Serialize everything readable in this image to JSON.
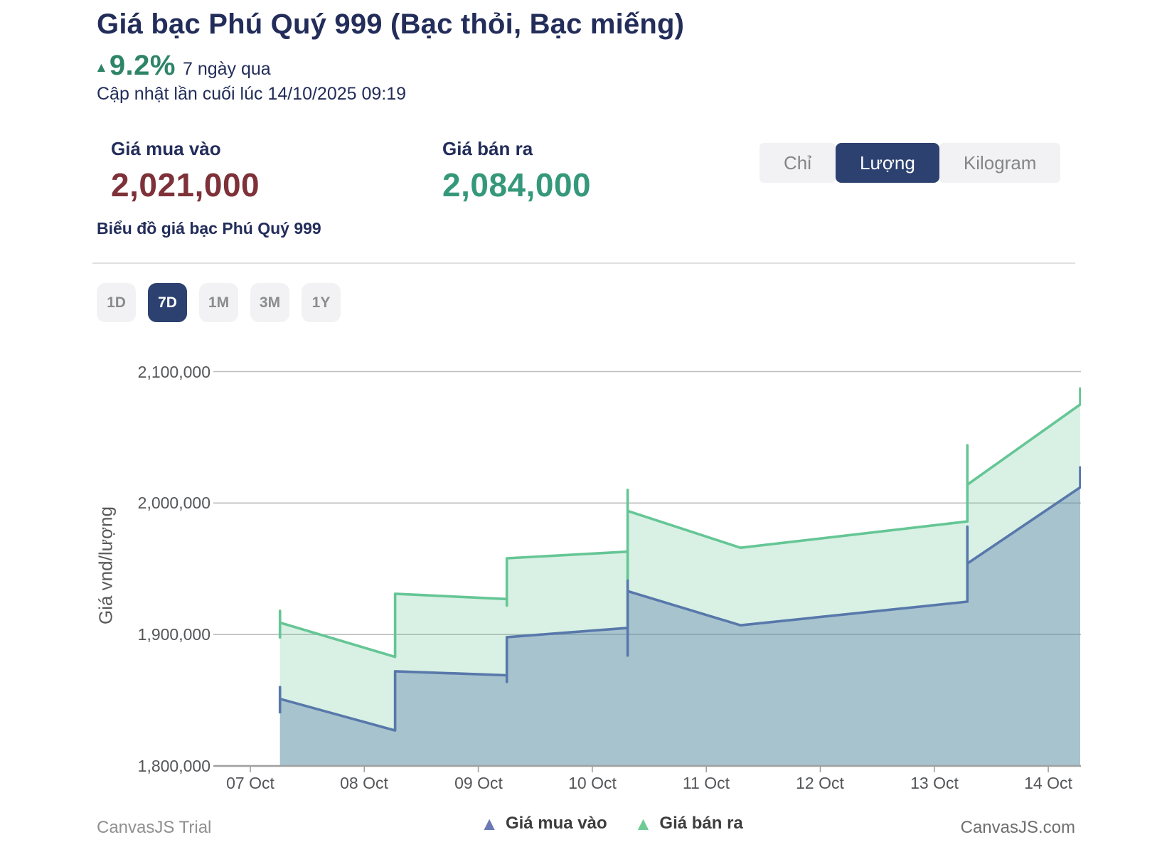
{
  "header": {
    "title": "Giá bạc Phú Quý 999 (Bạc thỏi, Bạc miếng)",
    "change_arrow": "▲",
    "change_pct": "9.2%",
    "change_period": "7 ngày qua",
    "updated": "Cập nhật lần cuối lúc 14/10/2025 09:19"
  },
  "prices": {
    "buy_label": "Giá mua vào",
    "buy_value": "2,021,000",
    "sell_label": "Giá bán ra",
    "sell_value": "2,084,000"
  },
  "unit_toggle": {
    "options": [
      {
        "label": "Chỉ",
        "active": false
      },
      {
        "label": "Lượng",
        "active": true
      },
      {
        "label": "Kilogram",
        "active": false
      }
    ]
  },
  "section_title": "Biểu đồ giá bạc Phú Quý 999",
  "range_buttons": [
    {
      "label": "1D",
      "active": false
    },
    {
      "label": "7D",
      "active": true
    },
    {
      "label": "1M",
      "active": false
    },
    {
      "label": "3M",
      "active": false
    },
    {
      "label": "1Y",
      "active": false
    }
  ],
  "colors": {
    "navy": "#232D5A",
    "accent_green": "#2E8467",
    "buy_red": "#7E3138",
    "sell_green": "#35987A",
    "active_button": "#2C4170",
    "chart_sell_line": "#65C695",
    "chart_buy_line": "#5878AB"
  },
  "chart_data": {
    "type": "area",
    "title": "",
    "xlabel": "",
    "ylabel": "Giá vnd/lượng",
    "ylim": [
      1800000,
      2123000
    ],
    "grid": true,
    "legend_position": "bottom",
    "x_unit": "days from 07 Oct",
    "y_ticks": [
      {
        "value": 1800000,
        "label": "1,800,000"
      },
      {
        "value": 1900000,
        "label": "1,900,000"
      },
      {
        "value": 2000000,
        "label": "2,000,000"
      },
      {
        "value": 2100000,
        "label": "2,100,000"
      }
    ],
    "x_ticks": [
      {
        "t": 0,
        "label": "07 Oct"
      },
      {
        "t": 1,
        "label": "08 Oct"
      },
      {
        "t": 2,
        "label": "09 Oct"
      },
      {
        "t": 3,
        "label": "10 Oct"
      },
      {
        "t": 4,
        "label": "11 Oct"
      },
      {
        "t": 5,
        "label": "12 Oct"
      },
      {
        "t": 6,
        "label": "13 Oct"
      },
      {
        "t": 7,
        "label": "14 Oct"
      }
    ],
    "series": [
      {
        "name": "Giá bán ra",
        "color": "#65C695",
        "fill": "rgba(101,198,149,0.25)",
        "points": [
          [
            0.26,
            1897000
          ],
          [
            0.26,
            1918000
          ],
          [
            0.26,
            1909000
          ],
          [
            1.27,
            1883000
          ],
          [
            1.27,
            1931000
          ],
          [
            2.25,
            1927000
          ],
          [
            2.25,
            1922000
          ],
          [
            2.25,
            1958000
          ],
          [
            3.31,
            1963000
          ],
          [
            3.31,
            1942000
          ],
          [
            3.31,
            2010000
          ],
          [
            3.31,
            1994000
          ],
          [
            4.3,
            1966000
          ],
          [
            6.29,
            1986000
          ],
          [
            6.29,
            2044000
          ],
          [
            6.29,
            2014000
          ],
          [
            7.28,
            2075000
          ],
          [
            7.28,
            2088000
          ]
        ]
      },
      {
        "name": "Giá mua vào",
        "color": "#5878AB",
        "fill": "rgba(88,120,171,0.38)",
        "points": [
          [
            0.26,
            1840000
          ],
          [
            0.26,
            1860000
          ],
          [
            0.26,
            1851000
          ],
          [
            1.27,
            1827000
          ],
          [
            1.27,
            1872000
          ],
          [
            2.25,
            1869000
          ],
          [
            2.25,
            1864000
          ],
          [
            2.25,
            1898000
          ],
          [
            3.31,
            1905000
          ],
          [
            3.31,
            1884000
          ],
          [
            3.31,
            1941000
          ],
          [
            3.31,
            1933000
          ],
          [
            4.3,
            1907000
          ],
          [
            6.29,
            1925000
          ],
          [
            6.29,
            1982000
          ],
          [
            6.29,
            1954000
          ],
          [
            7.28,
            2012000
          ],
          [
            7.28,
            2028000
          ]
        ]
      }
    ],
    "legend": [
      {
        "label": "Giá mua vào",
        "color": "#6B79B4"
      },
      {
        "label": "Giá bán ra",
        "color": "#6FCB96"
      }
    ]
  },
  "footer": {
    "trial": "CanvasJS Trial",
    "site": "CanvasJS.com"
  }
}
